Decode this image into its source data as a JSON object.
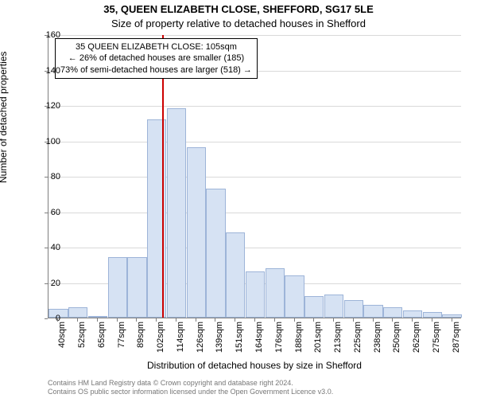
{
  "title_line1": "35, QUEEN ELIZABETH CLOSE, SHEFFORD, SG17 5LE",
  "title_line2": "Size of property relative to detached houses in Shefford",
  "ylabel": "Number of detached properties",
  "xlabel": "Distribution of detached houses by size in Shefford",
  "attribution_line1": "Contains HM Land Registry data © Crown copyright and database right 2024.",
  "attribution_line2": "Contains OS public sector information licensed under the Open Government Licence v3.0.",
  "chart": {
    "type": "histogram",
    "background_color": "#ffffff",
    "axis_color": "#7f7f7f",
    "grid_color": "#d9d9d9",
    "bar_fill": "#d6e2f3",
    "bar_stroke": "#9db4d8",
    "marker_color": "#cc0000",
    "tick_fontsize": 11,
    "label_fontsize": 12,
    "title_fontsize": 13,
    "ylim": [
      0,
      160
    ],
    "ytick_step": 20,
    "xtick_labels": [
      "40sqm",
      "52sqm",
      "65sqm",
      "77sqm",
      "89sqm",
      "102sqm",
      "114sqm",
      "126sqm",
      "139sqm",
      "151sqm",
      "164sqm",
      "176sqm",
      "188sqm",
      "201sqm",
      "213sqm",
      "225sqm",
      "238sqm",
      "250sqm",
      "262sqm",
      "275sqm",
      "287sqm"
    ],
    "values": [
      5,
      6,
      0,
      34,
      34,
      112,
      118,
      96,
      73,
      48,
      26,
      28,
      24,
      12,
      13,
      10,
      7,
      6,
      4,
      3,
      2
    ],
    "marker_sqm": 105
  },
  "annotation": {
    "line1": "35 QUEEN ELIZABETH CLOSE: 105sqm",
    "line2": "← 26% of detached houses are smaller (185)",
    "line3": "73% of semi-detached houses are larger (518) →"
  }
}
